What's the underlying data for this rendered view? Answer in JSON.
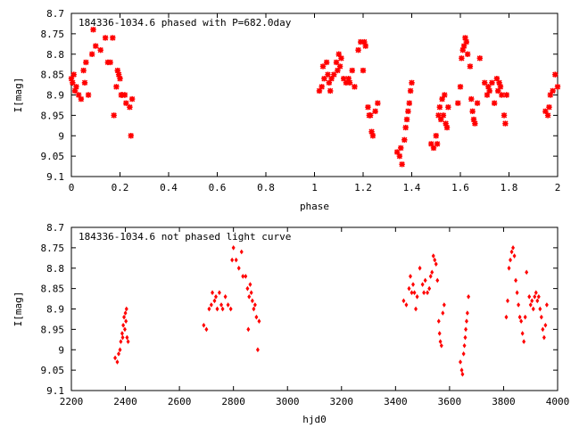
{
  "chart_data": [
    {
      "type": "scatter",
      "title": "184336-1034.6 phased with P=682.0day",
      "xlabel": "phase",
      "ylabel": "I[mag]",
      "xlim": [
        0,
        2
      ],
      "ylim": [
        9.1,
        8.7
      ],
      "y_inverted": true,
      "grid": false,
      "marker": "star",
      "color": "#ff0000",
      "xticks": [
        0,
        0.2,
        0.4,
        0.6,
        0.8,
        1,
        1.2,
        1.4,
        1.6,
        1.8,
        2
      ],
      "xtick_labels": [
        "0",
        "0.2",
        "0.4",
        "0.6",
        "0.8",
        "1",
        "1.2",
        "1.4",
        "1.6",
        "1.8",
        "2"
      ],
      "yticks": [
        8.7,
        8.75,
        8.8,
        8.85,
        8.9,
        8.95,
        9,
        9.05,
        9.1
      ],
      "ytick_labels": [
        "8.7",
        "8.75",
        "8.8",
        "8.85",
        "8.9",
        "8.95",
        "9",
        "9.05",
        "9.1"
      ],
      "points": [
        [
          0.0,
          8.86
        ],
        [
          0.005,
          8.87
        ],
        [
          0.01,
          8.85
        ],
        [
          0.015,
          8.89
        ],
        [
          0.02,
          8.88
        ],
        [
          0.03,
          8.9
        ],
        [
          0.04,
          8.91
        ],
        [
          0.05,
          8.84
        ],
        [
          0.055,
          8.87
        ],
        [
          0.06,
          8.82
        ],
        [
          0.07,
          8.9
        ],
        [
          0.085,
          8.8
        ],
        [
          0.09,
          8.74
        ],
        [
          0.1,
          8.78
        ],
        [
          0.12,
          8.79
        ],
        [
          0.14,
          8.76
        ],
        [
          0.15,
          8.82
        ],
        [
          0.16,
          8.82
        ],
        [
          0.17,
          8.76
        ],
        [
          0.175,
          8.95
        ],
        [
          0.185,
          8.88
        ],
        [
          0.19,
          8.84
        ],
        [
          0.195,
          8.85
        ],
        [
          0.2,
          8.86
        ],
        [
          0.205,
          8.9
        ],
        [
          0.21,
          8.9
        ],
        [
          0.22,
          8.9
        ],
        [
          0.225,
          8.92
        ],
        [
          0.24,
          8.93
        ],
        [
          0.245,
          9.0
        ],
        [
          0.25,
          8.91
        ],
        [
          1.02,
          8.89
        ],
        [
          1.03,
          8.88
        ],
        [
          1.035,
          8.83
        ],
        [
          1.04,
          8.86
        ],
        [
          1.05,
          8.82
        ],
        [
          1.055,
          8.85
        ],
        [
          1.06,
          8.87
        ],
        [
          1.065,
          8.89
        ],
        [
          1.07,
          8.86
        ],
        [
          1.08,
          8.85
        ],
        [
          1.09,
          8.82
        ],
        [
          1.095,
          8.84
        ],
        [
          1.1,
          8.8
        ],
        [
          1.105,
          8.83
        ],
        [
          1.11,
          8.81
        ],
        [
          1.12,
          8.86
        ],
        [
          1.13,
          8.87
        ],
        [
          1.14,
          8.86
        ],
        [
          1.145,
          8.87
        ],
        [
          1.155,
          8.84
        ],
        [
          1.165,
          8.88
        ],
        [
          1.18,
          8.79
        ],
        [
          1.19,
          8.77
        ],
        [
          1.2,
          8.84
        ],
        [
          1.205,
          8.77
        ],
        [
          1.21,
          8.78
        ],
        [
          1.22,
          8.93
        ],
        [
          1.225,
          8.95
        ],
        [
          1.23,
          8.95
        ],
        [
          1.235,
          8.99
        ],
        [
          1.24,
          9.0
        ],
        [
          1.25,
          8.94
        ],
        [
          1.26,
          8.92
        ],
        [
          1.34,
          9.04
        ],
        [
          1.35,
          9.05
        ],
        [
          1.355,
          9.03
        ],
        [
          1.36,
          9.07
        ],
        [
          1.37,
          9.01
        ],
        [
          1.375,
          8.98
        ],
        [
          1.38,
          8.96
        ],
        [
          1.385,
          8.94
        ],
        [
          1.39,
          8.92
        ],
        [
          1.395,
          8.89
        ],
        [
          1.4,
          8.87
        ],
        [
          1.48,
          9.02
        ],
        [
          1.49,
          9.03
        ],
        [
          1.5,
          9.0
        ],
        [
          1.505,
          9.02
        ],
        [
          1.51,
          8.95
        ],
        [
          1.515,
          8.93
        ],
        [
          1.52,
          8.96
        ],
        [
          1.525,
          8.91
        ],
        [
          1.53,
          8.95
        ],
        [
          1.535,
          8.9
        ],
        [
          1.54,
          8.97
        ],
        [
          1.545,
          8.98
        ],
        [
          1.55,
          8.93
        ],
        [
          1.59,
          8.92
        ],
        [
          1.6,
          8.88
        ],
        [
          1.605,
          8.81
        ],
        [
          1.61,
          8.79
        ],
        [
          1.615,
          8.78
        ],
        [
          1.62,
          8.76
        ],
        [
          1.625,
          8.77
        ],
        [
          1.63,
          8.8
        ],
        [
          1.64,
          8.83
        ],
        [
          1.645,
          8.91
        ],
        [
          1.65,
          8.94
        ],
        [
          1.655,
          8.96
        ],
        [
          1.66,
          8.97
        ],
        [
          1.67,
          8.92
        ],
        [
          1.68,
          8.81
        ],
        [
          1.7,
          8.87
        ],
        [
          1.71,
          8.9
        ],
        [
          1.715,
          8.88
        ],
        [
          1.72,
          8.89
        ],
        [
          1.73,
          8.87
        ],
        [
          1.74,
          8.92
        ],
        [
          1.75,
          8.86
        ],
        [
          1.755,
          8.89
        ],
        [
          1.76,
          8.87
        ],
        [
          1.765,
          8.88
        ],
        [
          1.77,
          8.9
        ],
        [
          1.78,
          8.95
        ],
        [
          1.785,
          8.97
        ],
        [
          1.79,
          8.9
        ],
        [
          1.95,
          8.94
        ],
        [
          1.96,
          8.95
        ],
        [
          1.965,
          8.93
        ],
        [
          1.97,
          8.9
        ],
        [
          1.98,
          8.89
        ],
        [
          1.99,
          8.85
        ],
        [
          2.0,
          8.88
        ]
      ]
    },
    {
      "type": "scatter",
      "title": "184336-1034.6 not phased light curve",
      "xlabel": "hjd0",
      "ylabel": "I[mag]",
      "xlim": [
        2200,
        4000
      ],
      "ylim": [
        9.1,
        8.7
      ],
      "y_inverted": true,
      "grid": false,
      "marker": "diamond",
      "color": "#ff0000",
      "xticks": [
        2200,
        2400,
        2600,
        2800,
        3000,
        3200,
        3400,
        3600,
        3800,
        4000
      ],
      "xtick_labels": [
        "2200",
        "2400",
        "2600",
        "2800",
        "3000",
        "3200",
        "3400",
        "3600",
        "3800",
        "4000"
      ],
      "yticks": [
        8.7,
        8.75,
        8.8,
        8.85,
        8.9,
        8.95,
        9,
        9.05,
        9.1
      ],
      "ytick_labels": [
        "8.7",
        "8.75",
        "8.8",
        "8.85",
        "8.9",
        "8.95",
        "9",
        "9.05",
        "9.1"
      ],
      "points": [
        [
          2362,
          9.02
        ],
        [
          2370,
          9.03
        ],
        [
          2375,
          9.01
        ],
        [
          2380,
          9.0
        ],
        [
          2383,
          8.98
        ],
        [
          2388,
          8.96
        ],
        [
          2390,
          8.97
        ],
        [
          2392,
          8.94
        ],
        [
          2395,
          8.92
        ],
        [
          2398,
          8.95
        ],
        [
          2400,
          8.91
        ],
        [
          2402,
          8.93
        ],
        [
          2404,
          8.9
        ],
        [
          2406,
          8.97
        ],
        [
          2410,
          8.98
        ],
        [
          2690,
          8.94
        ],
        [
          2700,
          8.95
        ],
        [
          2710,
          8.9
        ],
        [
          2718,
          8.89
        ],
        [
          2722,
          8.86
        ],
        [
          2730,
          8.88
        ],
        [
          2735,
          8.87
        ],
        [
          2740,
          8.9
        ],
        [
          2748,
          8.86
        ],
        [
          2755,
          8.89
        ],
        [
          2760,
          8.9
        ],
        [
          2770,
          8.87
        ],
        [
          2780,
          8.89
        ],
        [
          2790,
          8.9
        ],
        [
          2795,
          8.78
        ],
        [
          2800,
          8.75
        ],
        [
          2810,
          8.78
        ],
        [
          2820,
          8.8
        ],
        [
          2830,
          8.76
        ],
        [
          2835,
          8.82
        ],
        [
          2845,
          8.82
        ],
        [
          2852,
          8.85
        ],
        [
          2855,
          8.95
        ],
        [
          2858,
          8.87
        ],
        [
          2862,
          8.84
        ],
        [
          2866,
          8.86
        ],
        [
          2870,
          8.88
        ],
        [
          2875,
          8.9
        ],
        [
          2880,
          8.89
        ],
        [
          2885,
          8.92
        ],
        [
          2890,
          9.0
        ],
        [
          2895,
          8.93
        ],
        [
          3430,
          8.88
        ],
        [
          3440,
          8.89
        ],
        [
          3450,
          8.85
        ],
        [
          3455,
          8.82
        ],
        [
          3460,
          8.86
        ],
        [
          3465,
          8.84
        ],
        [
          3470,
          8.86
        ],
        [
          3475,
          8.9
        ],
        [
          3480,
          8.87
        ],
        [
          3490,
          8.8
        ],
        [
          3500,
          8.84
        ],
        [
          3505,
          8.86
        ],
        [
          3510,
          8.83
        ],
        [
          3518,
          8.86
        ],
        [
          3525,
          8.85
        ],
        [
          3530,
          8.82
        ],
        [
          3535,
          8.81
        ],
        [
          3540,
          8.77
        ],
        [
          3545,
          8.78
        ],
        [
          3550,
          8.79
        ],
        [
          3555,
          8.83
        ],
        [
          3560,
          8.93
        ],
        [
          3563,
          8.96
        ],
        [
          3566,
          8.98
        ],
        [
          3570,
          8.99
        ],
        [
          3575,
          8.91
        ],
        [
          3580,
          8.89
        ],
        [
          3640,
          9.03
        ],
        [
          3645,
          9.05
        ],
        [
          3648,
          9.06
        ],
        [
          3652,
          9.01
        ],
        [
          3655,
          8.99
        ],
        [
          3658,
          8.97
        ],
        [
          3660,
          8.95
        ],
        [
          3663,
          8.93
        ],
        [
          3666,
          8.91
        ],
        [
          3670,
          8.87
        ],
        [
          3810,
          8.92
        ],
        [
          3815,
          8.88
        ],
        [
          3820,
          8.8
        ],
        [
          3825,
          8.78
        ],
        [
          3830,
          8.76
        ],
        [
          3835,
          8.75
        ],
        [
          3840,
          8.77
        ],
        [
          3845,
          8.83
        ],
        [
          3850,
          8.86
        ],
        [
          3855,
          8.89
        ],
        [
          3860,
          8.92
        ],
        [
          3865,
          8.93
        ],
        [
          3870,
          8.96
        ],
        [
          3875,
          8.98
        ],
        [
          3880,
          8.92
        ],
        [
          3885,
          8.81
        ],
        [
          3895,
          8.87
        ],
        [
          3900,
          8.89
        ],
        [
          3905,
          8.88
        ],
        [
          3910,
          8.9
        ],
        [
          3915,
          8.87
        ],
        [
          3920,
          8.86
        ],
        [
          3925,
          8.88
        ],
        [
          3930,
          8.87
        ],
        [
          3935,
          8.9
        ],
        [
          3940,
          8.92
        ],
        [
          3945,
          8.95
        ],
        [
          3950,
          8.97
        ],
        [
          3955,
          8.94
        ],
        [
          3960,
          8.89
        ]
      ]
    }
  ]
}
